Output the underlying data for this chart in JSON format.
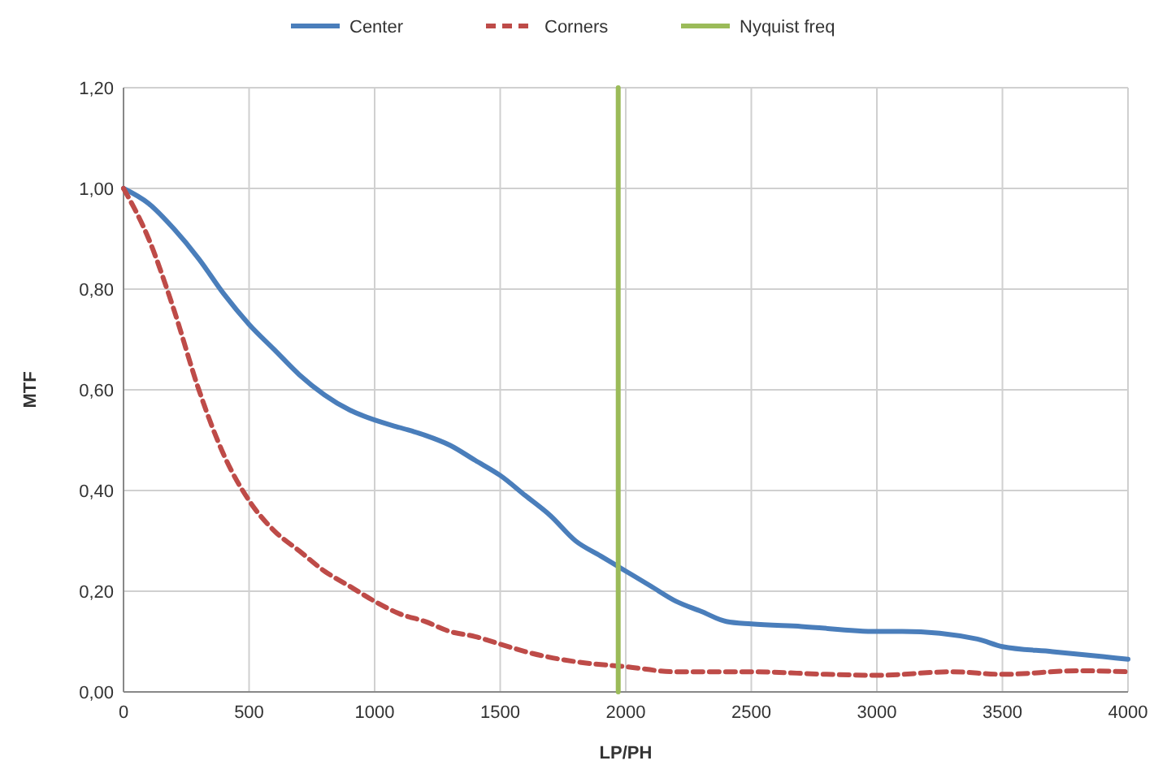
{
  "chart_data": {
    "type": "line",
    "xlabel": "LP/PH",
    "ylabel": "MTF",
    "xlim": [
      0,
      4000
    ],
    "xticks": [
      0,
      500,
      1000,
      1500,
      2000,
      2500,
      3000,
      3500,
      4000
    ],
    "ylim": [
      0,
      1.2
    ],
    "yticks": [
      {
        "value": 0,
        "label": "0,00"
      },
      {
        "value": 0.2,
        "label": "0,20"
      },
      {
        "value": 0.4,
        "label": "0,40"
      },
      {
        "value": 0.6,
        "label": "0,60"
      },
      {
        "value": 0.8,
        "label": "0,80"
      },
      {
        "value": 1,
        "label": "1,00"
      },
      {
        "value": 1.2,
        "label": "1,20"
      }
    ],
    "grid": true,
    "legend": "top",
    "series": [
      {
        "name": "Center",
        "color": "#4a7ebb",
        "line_style": "solid",
        "x": [
          0,
          100,
          200,
          300,
          400,
          500,
          600,
          700,
          800,
          900,
          1000,
          1100,
          1200,
          1300,
          1400,
          1500,
          1600,
          1700,
          1800,
          1900,
          2000,
          2100,
          2200,
          2300,
          2400,
          2500,
          2700,
          3000,
          3100,
          3400,
          3500,
          3700,
          3900,
          4000
        ],
        "values": [
          1.0,
          0.97,
          0.92,
          0.86,
          0.79,
          0.73,
          0.68,
          0.63,
          0.59,
          0.56,
          0.54,
          0.525,
          0.51,
          0.49,
          0.46,
          0.43,
          0.39,
          0.35,
          0.3,
          0.27,
          0.24,
          0.21,
          0.18,
          0.16,
          0.14,
          0.135,
          0.13,
          0.12,
          0.12,
          0.105,
          0.09,
          0.08,
          0.07,
          0.065
        ]
      },
      {
        "name": "Corners",
        "color": "#be4b48",
        "line_style": "dashed",
        "x": [
          0,
          100,
          200,
          300,
          400,
          500,
          600,
          700,
          800,
          900,
          1000,
          1100,
          1200,
          1300,
          1400,
          1500,
          1600,
          1800,
          2000,
          2200,
          2500,
          2800,
          3000,
          3300,
          3500,
          3800,
          4000
        ],
        "values": [
          1.0,
          0.9,
          0.76,
          0.6,
          0.47,
          0.38,
          0.32,
          0.28,
          0.24,
          0.21,
          0.18,
          0.155,
          0.14,
          0.12,
          0.11,
          0.095,
          0.08,
          0.06,
          0.05,
          0.04,
          0.04,
          0.035,
          0.033,
          0.04,
          0.035,
          0.042,
          0.04
        ]
      },
      {
        "name": "Nyquist freq",
        "color": "#9bbb59",
        "line_style": "solid",
        "x": [
          1970,
          1970
        ],
        "values": [
          0,
          1.2
        ]
      }
    ]
  }
}
